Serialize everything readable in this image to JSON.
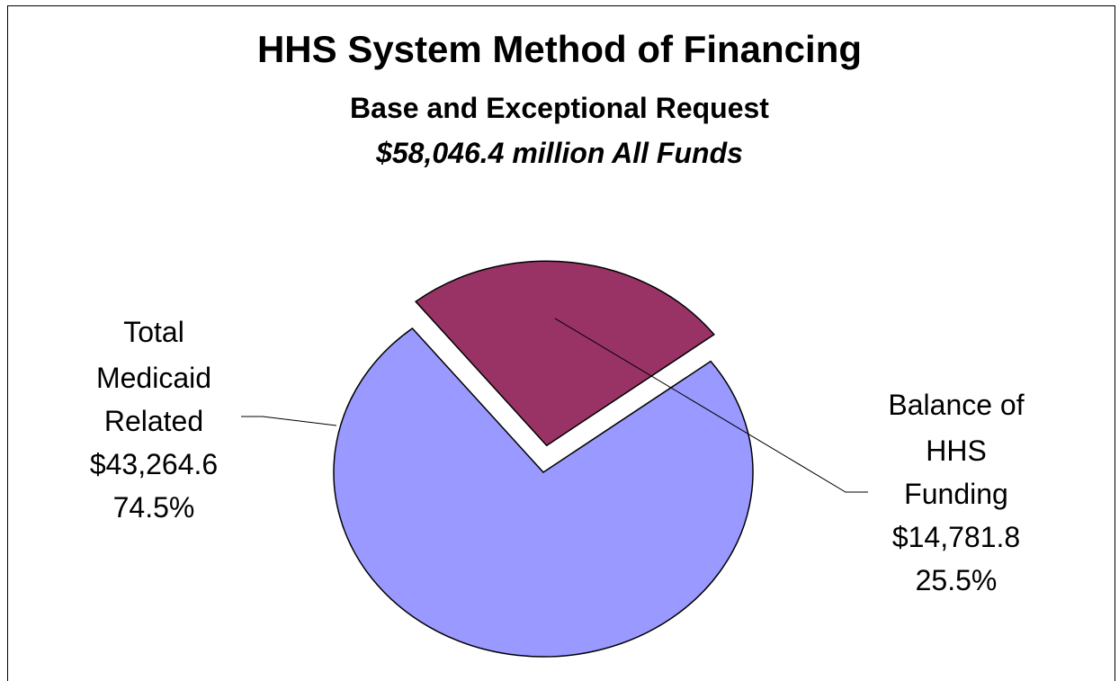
{
  "chart_data": {
    "type": "pie",
    "title": "HHS System Method of Financing",
    "subtitle": "Base and Exceptional Request",
    "subtitle2": "$58,046.4 million All Funds",
    "slices": [
      {
        "label_lines": [
          "Total",
          "Medicaid",
          "Related"
        ],
        "value": 43264.6,
        "value_label": "$43,264.6",
        "percent": 74.5,
        "percent_label": "74.5%",
        "color": "#9999ff",
        "exploded": false
      },
      {
        "label_lines": [
          "Balance of",
          "HHS",
          "Funding"
        ],
        "value": 14781.8,
        "value_label": "$14,781.8",
        "percent": 25.5,
        "percent_label": "25.5%",
        "color": "#993366",
        "exploded": true
      }
    ]
  }
}
